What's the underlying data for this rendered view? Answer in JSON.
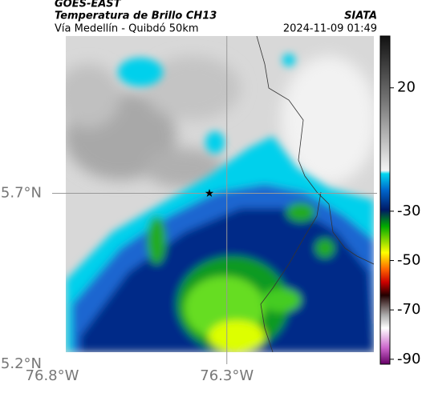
{
  "header": {
    "source": "GOES-EAST",
    "title": "Temperatura de Brillo CH13",
    "org": "SIATA",
    "route": "Vía Medellín - Quibdó 50km",
    "timestamp": "2024-11-09 01:49"
  },
  "map": {
    "xlim": [
      -76.8,
      -75.87
    ],
    "ylim": [
      5.2,
      6.16
    ],
    "xticks": [
      {
        "value": -76.8,
        "label": "76.8°W"
      },
      {
        "value": -76.3,
        "label": "76.3°W"
      }
    ],
    "yticks": [
      {
        "value": 5.2,
        "label": "5.2°N"
      },
      {
        "value": 5.7,
        "label": "5.7°N"
      }
    ],
    "grid": true,
    "marker": {
      "lon": -76.35,
      "lat": 5.7
    }
  },
  "colorbar": {
    "lim": [
      -92,
      41
    ],
    "ticks": [
      20,
      -30,
      -50,
      -70,
      -90
    ]
  }
}
